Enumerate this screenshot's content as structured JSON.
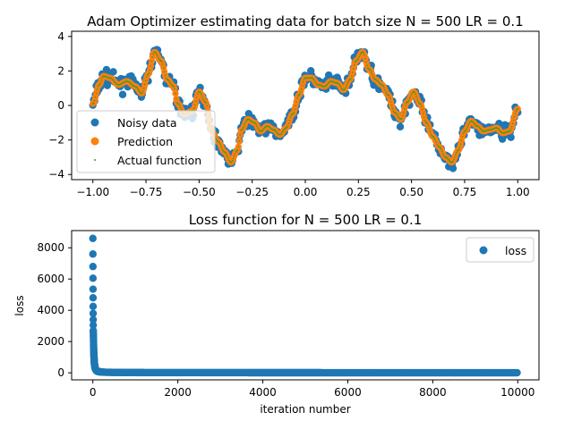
{
  "chart_data": [
    {
      "type": "scatter",
      "title": "Adam Optimizer estimating data for batch size N = 500 LR = 0.1",
      "xlabel": "",
      "ylabel": "",
      "xlim": [
        -1.1,
        1.1
      ],
      "ylim": [
        -4.3,
        4.3
      ],
      "x_ticks": [
        -1.0,
        -0.75,
        -0.5,
        -0.25,
        0.0,
        0.25,
        0.5,
        0.75,
        1.0
      ],
      "x_tick_labels": [
        "−1.00",
        "−0.75",
        "−0.50",
        "−0.25",
        "0.00",
        "0.25",
        "0.50",
        "0.75",
        "1.00"
      ],
      "y_ticks": [
        -4,
        -2,
        0,
        2,
        4
      ],
      "y_tick_labels": [
        "−4",
        "−2",
        "0",
        "2",
        "4"
      ],
      "legend_position": "lower-left",
      "grid": false,
      "series": [
        {
          "name": "Noisy data",
          "color": "#1f77b4",
          "marker": "large-dot"
        },
        {
          "name": "Prediction",
          "color": "#ff7f0e",
          "marker": "dot"
        },
        {
          "name": "Actual function",
          "color": "#2ca02c",
          "marker": "small-dot"
        }
      ],
      "curve_keypoints": {
        "x": [
          -1.0,
          -0.97,
          -0.95,
          -0.92,
          -0.88,
          -0.84,
          -0.8,
          -0.77,
          -0.74,
          -0.71,
          -0.68,
          -0.65,
          -0.62,
          -0.6,
          -0.57,
          -0.53,
          -0.5,
          -0.47,
          -0.44,
          -0.41,
          -0.38,
          -0.35,
          -0.32,
          -0.3,
          -0.27,
          -0.24,
          -0.21,
          -0.18,
          -0.15,
          -0.12,
          -0.09,
          -0.06,
          -0.03,
          0.0,
          0.03,
          0.06,
          0.09,
          0.12,
          0.15,
          0.18,
          0.21,
          0.24,
          0.27,
          0.3,
          0.33,
          0.36,
          0.39,
          0.42,
          0.45,
          0.48,
          0.51,
          0.54,
          0.57,
          0.6,
          0.63,
          0.66,
          0.69,
          0.72,
          0.75,
          0.78,
          0.81,
          0.84,
          0.87,
          0.9,
          0.93,
          0.96,
          1.0
        ],
        "y": [
          0.1,
          1.2,
          1.7,
          1.6,
          1.2,
          1.4,
          1.1,
          0.7,
          1.8,
          3.1,
          2.6,
          1.5,
          1.1,
          0.1,
          -0.5,
          -0.3,
          0.8,
          0.2,
          -1.5,
          -2.1,
          -2.7,
          -3.3,
          -2.6,
          -1.4,
          -0.8,
          -1.0,
          -1.5,
          -1.2,
          -1.4,
          -1.7,
          -1.3,
          -0.5,
          0.6,
          1.6,
          1.6,
          1.2,
          1.1,
          1.4,
          1.3,
          0.9,
          1.5,
          2.6,
          3.1,
          2.1,
          1.5,
          1.2,
          0.6,
          -0.4,
          -0.8,
          0.2,
          0.8,
          0.1,
          -1.0,
          -1.8,
          -2.4,
          -3.0,
          -3.3,
          -2.6,
          -1.5,
          -0.9,
          -1.2,
          -1.5,
          -1.4,
          -1.3,
          -1.6,
          -1.5,
          -0.2
        ]
      }
    },
    {
      "type": "scatter",
      "title": "Loss function for N = 500 LR = 0.1",
      "xlabel": "iteration number",
      "ylabel": "loss",
      "xlim": [
        -500,
        10500
      ],
      "ylim": [
        -450,
        9100
      ],
      "x_ticks": [
        0,
        2000,
        4000,
        6000,
        8000,
        10000
      ],
      "x_tick_labels": [
        "0",
        "2000",
        "4000",
        "6000",
        "8000",
        "10000"
      ],
      "y_ticks": [
        0,
        2000,
        4000,
        6000,
        8000
      ],
      "y_tick_labels": [
        "0",
        "2000",
        "4000",
        "6000",
        "8000"
      ],
      "legend_position": "top-right",
      "grid": false,
      "series": [
        {
          "name": "loss",
          "color": "#1f77b4",
          "marker": "dot"
        }
      ],
      "x": [
        0,
        1,
        2,
        3,
        4,
        5,
        6,
        7,
        8,
        9,
        10,
        12,
        14,
        16,
        18,
        20,
        23,
        26,
        30,
        35,
        40,
        50,
        60,
        80,
        100,
        150,
        200,
        300,
        500,
        1000,
        2000,
        4000,
        6000,
        8000,
        10000
      ],
      "values": [
        8600,
        7600,
        6800,
        6050,
        5350,
        4800,
        4250,
        3800,
        3400,
        3050,
        2700,
        2450,
        2200,
        1950,
        1700,
        1500,
        1250,
        1050,
        850,
        650,
        500,
        350,
        250,
        150,
        100,
        70,
        50,
        35,
        25,
        15,
        10,
        8,
        6,
        5,
        5
      ]
    }
  ]
}
